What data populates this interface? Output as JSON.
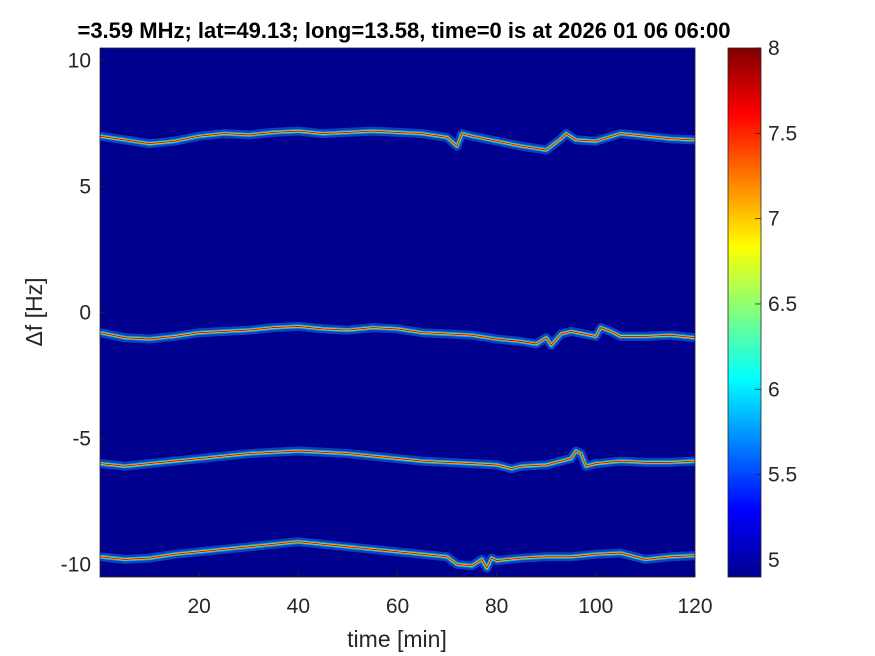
{
  "chart_data": {
    "type": "heatmap",
    "title": "=3.59 MHz;  lat=49.13; long=13.58, time=0 is at 2026 01 06 06:00",
    "xlabel": "time [min]",
    "ylabel": "Δf [Hz]",
    "xlim": [
      0,
      120
    ],
    "ylim": [
      -10.5,
      10.5
    ],
    "xticks": [
      20,
      40,
      60,
      80,
      100,
      120
    ],
    "yticks": [
      -10,
      -5,
      0,
      5,
      10
    ],
    "colorbar": {
      "colormap": "jet",
      "range": [
        4.9,
        8
      ],
      "ticks": [
        5,
        5.5,
        6,
        6.5,
        7,
        7.5,
        8
      ]
    },
    "background_color": "#00008f",
    "traces": [
      {
        "name": "",
        "x": [
          0,
          5,
          10,
          15,
          20,
          25,
          30,
          35,
          40,
          45,
          50,
          55,
          60,
          65,
          70,
          72,
          73,
          75,
          80,
          85,
          90,
          93,
          94,
          96,
          100,
          105,
          110,
          115,
          120
        ],
        "y": [
          7.0,
          6.85,
          6.7,
          6.8,
          7.0,
          7.1,
          7.05,
          7.15,
          7.2,
          7.1,
          7.15,
          7.2,
          7.15,
          7.1,
          6.95,
          6.6,
          7.1,
          7.0,
          6.8,
          6.6,
          6.45,
          6.9,
          7.1,
          6.85,
          6.8,
          7.1,
          7.0,
          6.9,
          6.85
        ]
      },
      {
        "name": "",
        "x": [
          0,
          5,
          10,
          15,
          20,
          25,
          30,
          35,
          40,
          45,
          50,
          55,
          60,
          65,
          70,
          75,
          80,
          85,
          88,
          90,
          91,
          93,
          95,
          100,
          101,
          103,
          105,
          110,
          115,
          120
        ],
        "y": [
          -0.8,
          -1.0,
          -1.05,
          -0.95,
          -0.8,
          -0.75,
          -0.7,
          -0.6,
          -0.55,
          -0.65,
          -0.7,
          -0.6,
          -0.65,
          -0.8,
          -0.85,
          -0.9,
          -1.05,
          -1.15,
          -1.25,
          -1.0,
          -1.3,
          -0.85,
          -0.75,
          -0.95,
          -0.6,
          -0.75,
          -0.95,
          -0.95,
          -0.9,
          -1.0
        ]
      },
      {
        "name": "",
        "x": [
          0,
          5,
          10,
          15,
          20,
          25,
          30,
          35,
          40,
          45,
          50,
          55,
          60,
          65,
          70,
          75,
          80,
          83,
          85,
          90,
          95,
          96,
          97,
          98,
          100,
          105,
          110,
          115,
          120
        ],
        "y": [
          -6.0,
          -6.1,
          -6.0,
          -5.9,
          -5.8,
          -5.7,
          -5.6,
          -5.55,
          -5.5,
          -5.55,
          -5.6,
          -5.7,
          -5.8,
          -5.9,
          -5.95,
          -6.0,
          -6.05,
          -6.2,
          -6.1,
          -6.05,
          -5.8,
          -5.5,
          -5.6,
          -6.1,
          -6.0,
          -5.9,
          -5.95,
          -5.95,
          -5.9
        ]
      },
      {
        "name": "",
        "x": [
          0,
          5,
          10,
          15,
          20,
          25,
          30,
          35,
          40,
          45,
          50,
          55,
          60,
          65,
          70,
          72,
          75,
          77,
          78,
          79,
          80,
          85,
          90,
          95,
          100,
          105,
          110,
          115,
          120
        ],
        "y": [
          -9.7,
          -9.8,
          -9.75,
          -9.6,
          -9.5,
          -9.4,
          -9.3,
          -9.2,
          -9.1,
          -9.2,
          -9.3,
          -9.4,
          -9.5,
          -9.6,
          -9.7,
          -10.0,
          -10.05,
          -9.8,
          -10.15,
          -9.75,
          -9.85,
          -9.75,
          -9.7,
          -9.7,
          -9.6,
          -9.55,
          -9.8,
          -9.7,
          -9.65
        ]
      }
    ]
  }
}
